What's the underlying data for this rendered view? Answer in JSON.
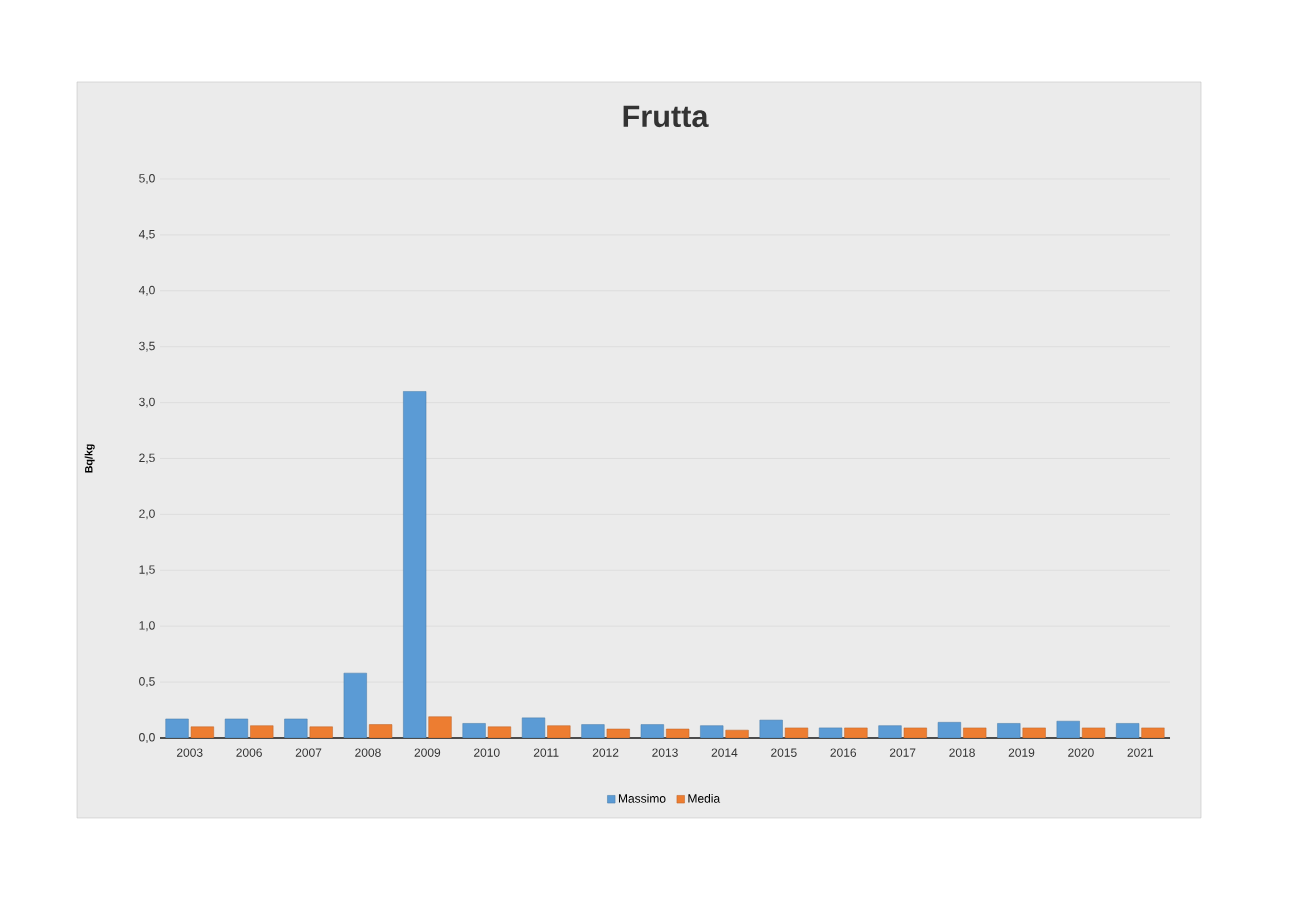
{
  "chart_data": {
    "type": "bar",
    "title": "Frutta",
    "ylabel": "Bq/kg",
    "categories": [
      "2003",
      "2006",
      "2007",
      "2008",
      "2009",
      "2010",
      "2011",
      "2012",
      "2013",
      "2014",
      "2015",
      "2016",
      "2017",
      "2018",
      "2019",
      "2020",
      "2021"
    ],
    "series": [
      {
        "name": "Massimo",
        "color": "#5b9bd5",
        "values": [
          0.17,
          0.17,
          0.17,
          0.58,
          3.1,
          0.13,
          0.18,
          0.12,
          0.12,
          0.11,
          0.16,
          0.09,
          0.11,
          0.14,
          0.13,
          0.15,
          0.13
        ]
      },
      {
        "name": "Media",
        "color": "#ed7d31",
        "values": [
          0.1,
          0.11,
          0.1,
          0.12,
          0.19,
          0.1,
          0.11,
          0.08,
          0.08,
          0.07,
          0.09,
          0.09,
          0.09,
          0.09,
          0.09,
          0.09,
          0.09
        ]
      }
    ],
    "ylim": [
      0,
      5
    ],
    "yticks": [
      {
        "value": 0,
        "label": "0,0"
      },
      {
        "value": 0.5,
        "label": "0,5"
      },
      {
        "value": 1,
        "label": "1,0"
      },
      {
        "value": 1.5,
        "label": "1,5"
      },
      {
        "value": 2,
        "label": "2,0"
      },
      {
        "value": 2.5,
        "label": "2,5"
      },
      {
        "value": 3,
        "label": "3,0"
      },
      {
        "value": 3.5,
        "label": "3,5"
      },
      {
        "value": 4,
        "label": "4,0"
      },
      {
        "value": 4.5,
        "label": "4,5"
      },
      {
        "value": 5,
        "label": "5,0"
      }
    ],
    "grid": "y",
    "legend": "bottom"
  }
}
